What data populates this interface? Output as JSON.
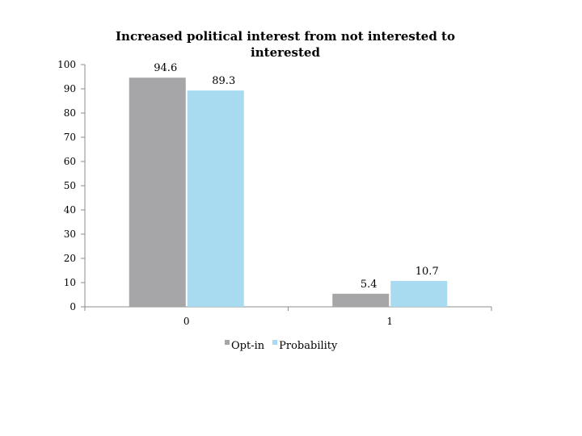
{
  "chart_data": {
    "type": "bar",
    "title": "Increased political interest from not interested to interested",
    "title_lines": [
      "Increased political interest from not interested to",
      "interested"
    ],
    "categories": [
      "0",
      "1"
    ],
    "series": [
      {
        "name": "Opt-in",
        "values": [
          94.6,
          5.4
        ],
        "labels": [
          "94.6",
          "5.4"
        ],
        "color": "#a6a6a8"
      },
      {
        "name": "Probability",
        "values": [
          89.3,
          10.7
        ],
        "labels": [
          "89.3",
          "10.7"
        ],
        "color": "#a9dbf0"
      }
    ],
    "ylim": [
      0,
      100
    ],
    "yticks": [
      "0",
      "10",
      "20",
      "30",
      "40",
      "50",
      "60",
      "70",
      "80",
      "90",
      "100"
    ],
    "xlabel": "",
    "ylabel": "",
    "grid": false,
    "legend": "bottom"
  }
}
